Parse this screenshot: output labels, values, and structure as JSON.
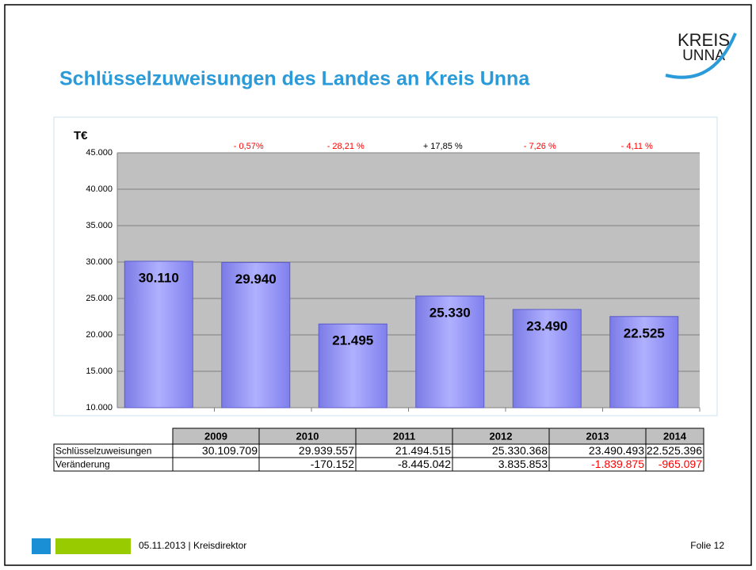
{
  "title": "Schlüsselzuweisungen des Landes an Kreis Unna",
  "logo": {
    "line1": "KREIS",
    "line2": "UNNA"
  },
  "chart_data": {
    "type": "bar",
    "y_label": "T€",
    "values": [
      30110,
      29940,
      21495,
      25330,
      23490,
      22525
    ],
    "value_labels": [
      "30.110",
      "29.940",
      "21.495",
      "25.330",
      "23.490",
      "22.525"
    ],
    "color": "#9999ff",
    "ylim": [
      10000,
      45000
    ],
    "yticks": [
      {
        "value": 10000,
        "label": "10.000"
      },
      {
        "value": 15000,
        "label": "15.000"
      },
      {
        "value": 20000,
        "label": "20.000"
      },
      {
        "value": 25000,
        "label": "25.000"
      },
      {
        "value": 30000,
        "label": "30.000"
      },
      {
        "value": 35000,
        "label": "35.000"
      },
      {
        "value": 40000,
        "label": "40.000"
      },
      {
        "value": 45000,
        "label": "45.000"
      }
    ],
    "grid": true,
    "annotations": [
      {
        "text": "- 0,57%",
        "color": "#ff0000"
      },
      {
        "text": "- 28,21 %",
        "color": "#ff0000"
      },
      {
        "text": "+ 17,85 %",
        "color": "#000000"
      },
      {
        "text": "- 7,26 %",
        "color": "#ff0000"
      },
      {
        "text": "- 4,11 %",
        "color": "#ff0000"
      }
    ]
  },
  "table": {
    "header": [
      "2009",
      "2010",
      "2011",
      "2012",
      "2013",
      "2014"
    ],
    "rows": [
      [
        "Schlüsselzuweisungen",
        "30.109.709",
        "29.939.557",
        "21.494.515",
        "25.330.368",
        "23.490.493",
        "22.525.396"
      ],
      [
        "Veränderung",
        null,
        "-170.152",
        "-8.445.042",
        "3.835.853",
        {
          "text": "-1.839.875",
          "color": "#ff0000"
        },
        {
          "text": "-965.097",
          "color": "#ff0000"
        }
      ]
    ]
  },
  "footer": {
    "date": "05.11.2013 | Kreisdirektor",
    "page": "Folie 12"
  }
}
